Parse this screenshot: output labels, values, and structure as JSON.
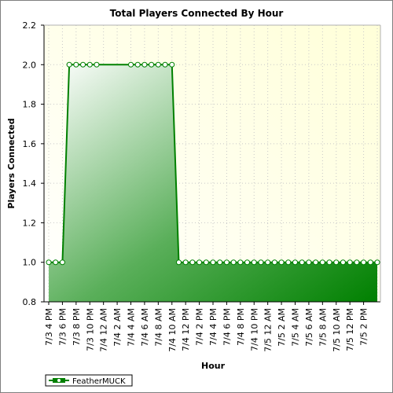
{
  "chart_data": {
    "type": "area",
    "title": "Total Players Connected By Hour",
    "xlabel": "Hour",
    "ylabel": "Players Connected",
    "ylim": [
      0.8,
      2.2
    ],
    "yticks": [
      "0.8",
      "1.0",
      "1.2",
      "1.4",
      "1.6",
      "1.8",
      "2.0",
      "2.2"
    ],
    "grid": true,
    "legend_position": "bottom-left",
    "x_tick_labels": [
      "7/3 4 PM",
      "7/3 6 PM",
      "7/3 8 PM",
      "7/3 10 PM",
      "7/4 12 AM",
      "7/4 2 AM",
      "7/4 4 AM",
      "7/4 6 AM",
      "7/4 8 AM",
      "7/4 10 AM",
      "7/4 12 PM",
      "7/4 2 PM",
      "7/4 4 PM",
      "7/4 6 PM",
      "7/4 8 PM",
      "7/4 10 PM",
      "7/5 12 AM",
      "7/5 2 AM",
      "7/5 4 AM",
      "7/5 6 AM",
      "7/5 8 AM",
      "7/5 10 AM",
      "7/5 12 PM",
      "7/5 2 PM"
    ],
    "series": [
      {
        "name": "FeatherMUCK",
        "color": "#008000",
        "points": [
          {
            "x": "7/3 4 PM",
            "y": 1.0
          },
          {
            "x": "7/3 5 PM",
            "y": 1.0
          },
          {
            "x": "7/3 6 PM",
            "y": 1.0
          },
          {
            "x": "7/3 7 PM",
            "y": 2.0
          },
          {
            "x": "7/3 8 PM",
            "y": 2.0
          },
          {
            "x": "7/3 9 PM",
            "y": 2.0
          },
          {
            "x": "7/3 10 PM",
            "y": 2.0
          },
          {
            "x": "7/3 11 PM",
            "y": 2.0
          },
          {
            "x": "7/4 4 AM",
            "y": 2.0
          },
          {
            "x": "7/4 5 AM",
            "y": 2.0
          },
          {
            "x": "7/4 6 AM",
            "y": 2.0
          },
          {
            "x": "7/4 7 AM",
            "y": 2.0
          },
          {
            "x": "7/4 8 AM",
            "y": 2.0
          },
          {
            "x": "7/4 9 AM",
            "y": 2.0
          },
          {
            "x": "7/4 10 AM",
            "y": 2.0
          },
          {
            "x": "7/4 11 AM",
            "y": 1.0
          },
          {
            "x": "7/4 12 PM",
            "y": 1.0
          },
          {
            "x": "7/4 1 PM",
            "y": 1.0
          },
          {
            "x": "7/4 2 PM",
            "y": 1.0
          },
          {
            "x": "7/4 3 PM",
            "y": 1.0
          },
          {
            "x": "7/4 4 PM",
            "y": 1.0
          },
          {
            "x": "7/4 5 PM",
            "y": 1.0
          },
          {
            "x": "7/4 6 PM",
            "y": 1.0
          },
          {
            "x": "7/4 7 PM",
            "y": 1.0
          },
          {
            "x": "7/4 8 PM",
            "y": 1.0
          },
          {
            "x": "7/4 9 PM",
            "y": 1.0
          },
          {
            "x": "7/4 10 PM",
            "y": 1.0
          },
          {
            "x": "7/4 11 PM",
            "y": 1.0
          },
          {
            "x": "7/5 12 AM",
            "y": 1.0
          },
          {
            "x": "7/5 1 AM",
            "y": 1.0
          },
          {
            "x": "7/5 2 AM",
            "y": 1.0
          },
          {
            "x": "7/5 3 AM",
            "y": 1.0
          },
          {
            "x": "7/5 4 AM",
            "y": 1.0
          },
          {
            "x": "7/5 5 AM",
            "y": 1.0
          },
          {
            "x": "7/5 6 AM",
            "y": 1.0
          },
          {
            "x": "7/5 7 AM",
            "y": 1.0
          },
          {
            "x": "7/5 8 AM",
            "y": 1.0
          },
          {
            "x": "7/5 9 AM",
            "y": 1.0
          },
          {
            "x": "7/5 10 AM",
            "y": 1.0
          },
          {
            "x": "7/5 11 AM",
            "y": 1.0
          },
          {
            "x": "7/5 12 PM",
            "y": 1.0
          },
          {
            "x": "7/5 1 PM",
            "y": 1.0
          },
          {
            "x": "7/5 2 PM",
            "y": 1.0
          },
          {
            "x": "7/5 3 PM",
            "y": 1.0
          },
          {
            "x": "7/5 4 PM",
            "y": 1.0
          }
        ]
      }
    ]
  }
}
